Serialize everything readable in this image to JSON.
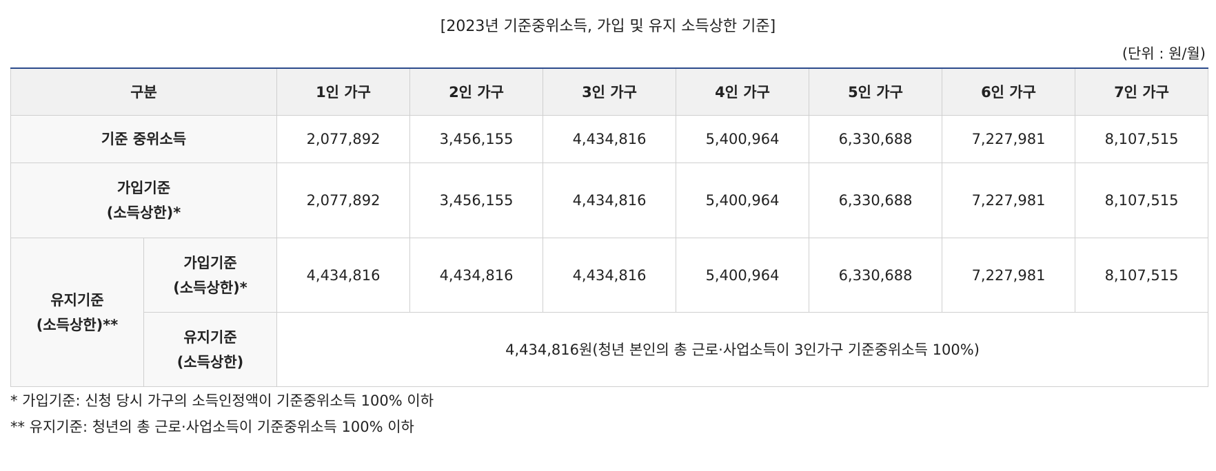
{
  "title": "[2023년 기준중위소득, 가입 및 유지 소득상한 기준]",
  "unit": "(단위 : 원/월)",
  "header": [
    "구분",
    "1인 가구",
    "2인 가구",
    "3인 가구",
    "4인 가구",
    "5인 가구",
    "6인 가구",
    "7인 가구"
  ],
  "rows": {
    "median": {
      "label": "기준 중위소득",
      "values": [
        "2,077,892",
        "3,456,155",
        "4,434,816",
        "5,400,964",
        "6,330,688",
        "7,227,981",
        "8,107,515"
      ]
    },
    "join": {
      "label1": "가입기준",
      "label2": "(소득상한)*",
      "values": [
        "2,077,892",
        "3,456,155",
        "4,434,816",
        "5,400,964",
        "6,330,688",
        "7,227,981",
        "8,107,515"
      ]
    },
    "maintain": {
      "label1": "유지기준",
      "label2": "(소득상한)**",
      "join": {
        "label1": "가입기준",
        "label2": "(소득상한)*",
        "values": [
          "4,434,816",
          "4,434,816",
          "4,434,816",
          "5,400,964",
          "6,330,688",
          "7,227,981",
          "8,107,515"
        ]
      },
      "keep": {
        "label1": "유지기준",
        "label2": "(소득상한)",
        "value": "4,434,816원(청년 본인의 총 근로·사업소득이 3인가구 기준중위소득 100%)"
      }
    }
  },
  "notes": [
    "* 가입기준: 신청 당시 가구의 소득인정액이 기준중위소득 100% 이하",
    "** 유지기준: 청년의 총 근로·사업소득이 기준중위소득 100% 이하"
  ]
}
